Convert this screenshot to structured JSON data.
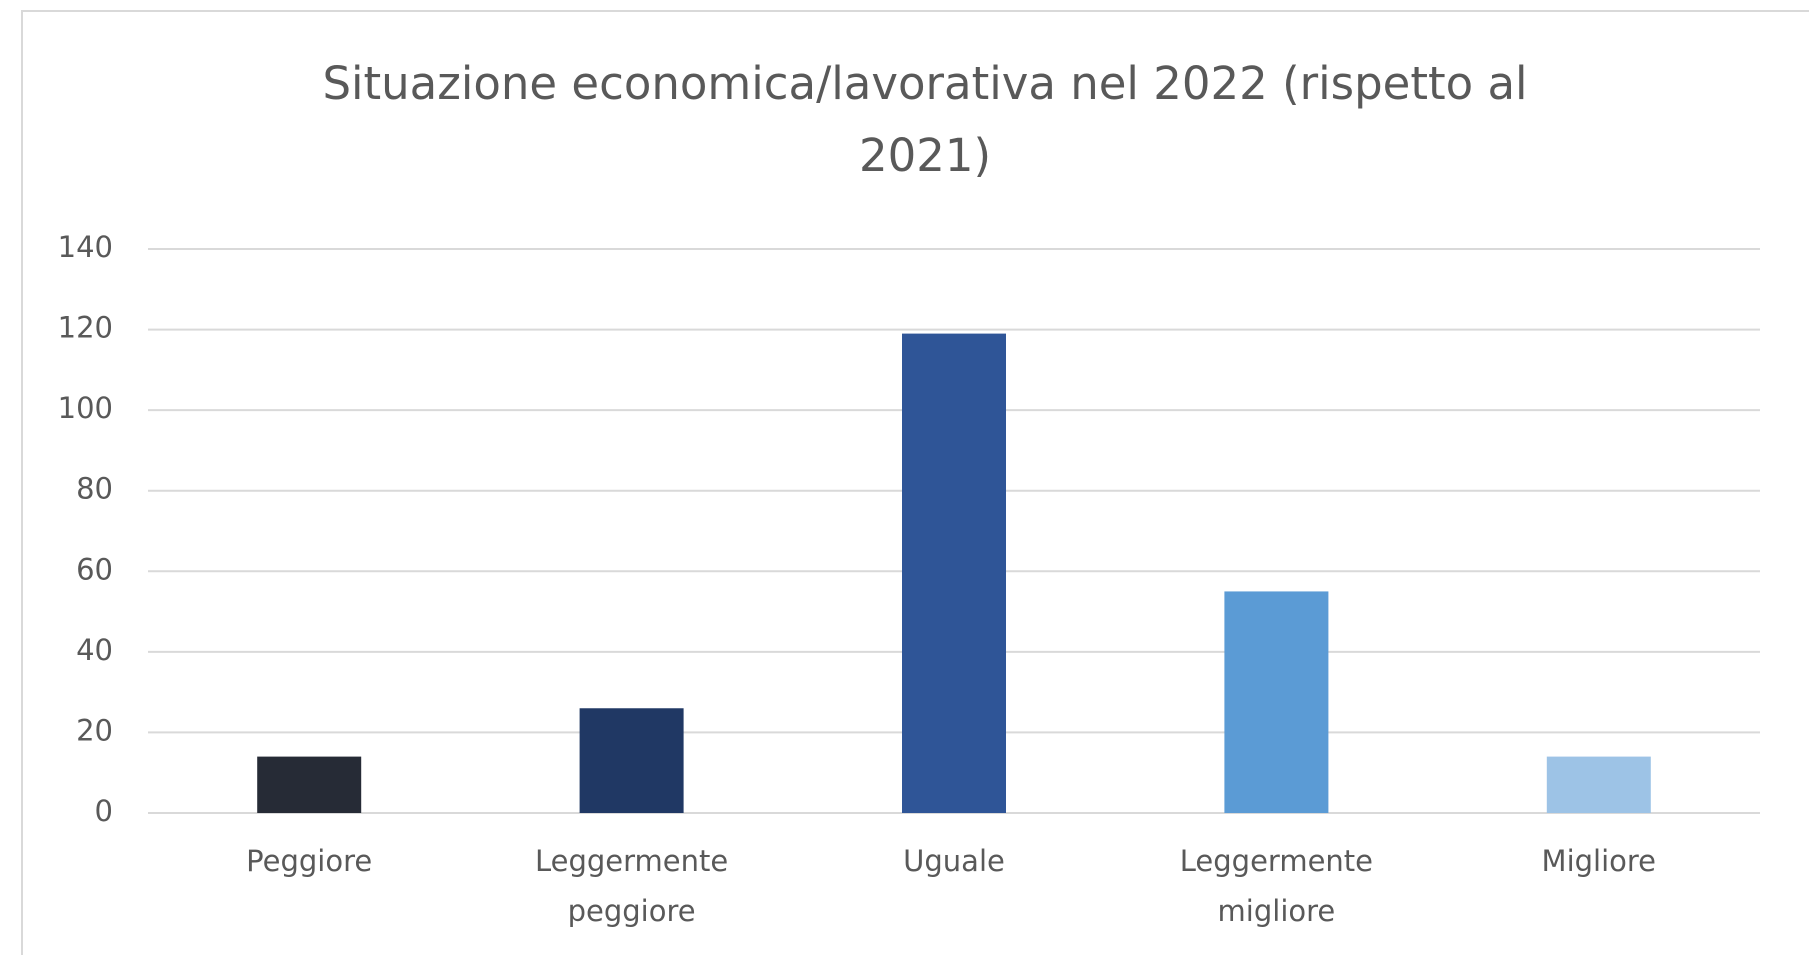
{
  "chart_data": {
    "type": "bar",
    "title": "Situazione economica/lavorativa nel 2022 (rispetto al 2021)",
    "categories": [
      "Peggiore",
      "Leggermente peggiore",
      "Uguale",
      "Leggermente migliore",
      "Migliore"
    ],
    "values": [
      14,
      26,
      119,
      55,
      14
    ],
    "colors": [
      "#262b36",
      "#203864",
      "#2f5597",
      "#5b9bd5",
      "#9dc3e6"
    ],
    "ylim": [
      0,
      140
    ],
    "yticks": [
      0,
      20,
      40,
      60,
      80,
      100,
      120,
      140
    ],
    "grid": true
  }
}
